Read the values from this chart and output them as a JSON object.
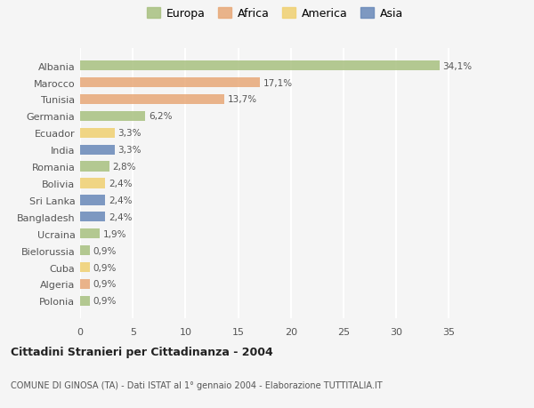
{
  "categories": [
    "Albania",
    "Marocco",
    "Tunisia",
    "Germania",
    "Ecuador",
    "India",
    "Romania",
    "Bolivia",
    "Sri Lanka",
    "Bangladesh",
    "Ucraina",
    "Bielorussia",
    "Cuba",
    "Algeria",
    "Polonia"
  ],
  "values": [
    34.1,
    17.1,
    13.7,
    6.2,
    3.3,
    3.3,
    2.8,
    2.4,
    2.4,
    2.4,
    1.9,
    0.9,
    0.9,
    0.9,
    0.9
  ],
  "labels": [
    "34,1%",
    "17,1%",
    "13,7%",
    "6,2%",
    "3,3%",
    "3,3%",
    "2,8%",
    "2,4%",
    "2,4%",
    "2,4%",
    "1,9%",
    "0,9%",
    "0,9%",
    "0,9%",
    "0,9%"
  ],
  "continent": [
    "Europa",
    "Africa",
    "Africa",
    "Europa",
    "America",
    "Asia",
    "Europa",
    "America",
    "Asia",
    "Asia",
    "Europa",
    "Europa",
    "America",
    "Africa",
    "Europa"
  ],
  "colors": {
    "Europa": "#a8c080",
    "Africa": "#e8a878",
    "America": "#f0d070",
    "Asia": "#6888b8"
  },
  "xlim": [
    0,
    37
  ],
  "title": "Cittadini Stranieri per Cittadinanza - 2004",
  "subtitle": "COMUNE DI GINOSA (TA) - Dati ISTAT al 1° gennaio 2004 - Elaborazione TUTTITALIA.IT",
  "bg_color": "#f5f5f5",
  "grid_color": "#ffffff",
  "bar_alpha": 0.85,
  "legend_order": [
    "Europa",
    "Africa",
    "America",
    "Asia"
  ]
}
